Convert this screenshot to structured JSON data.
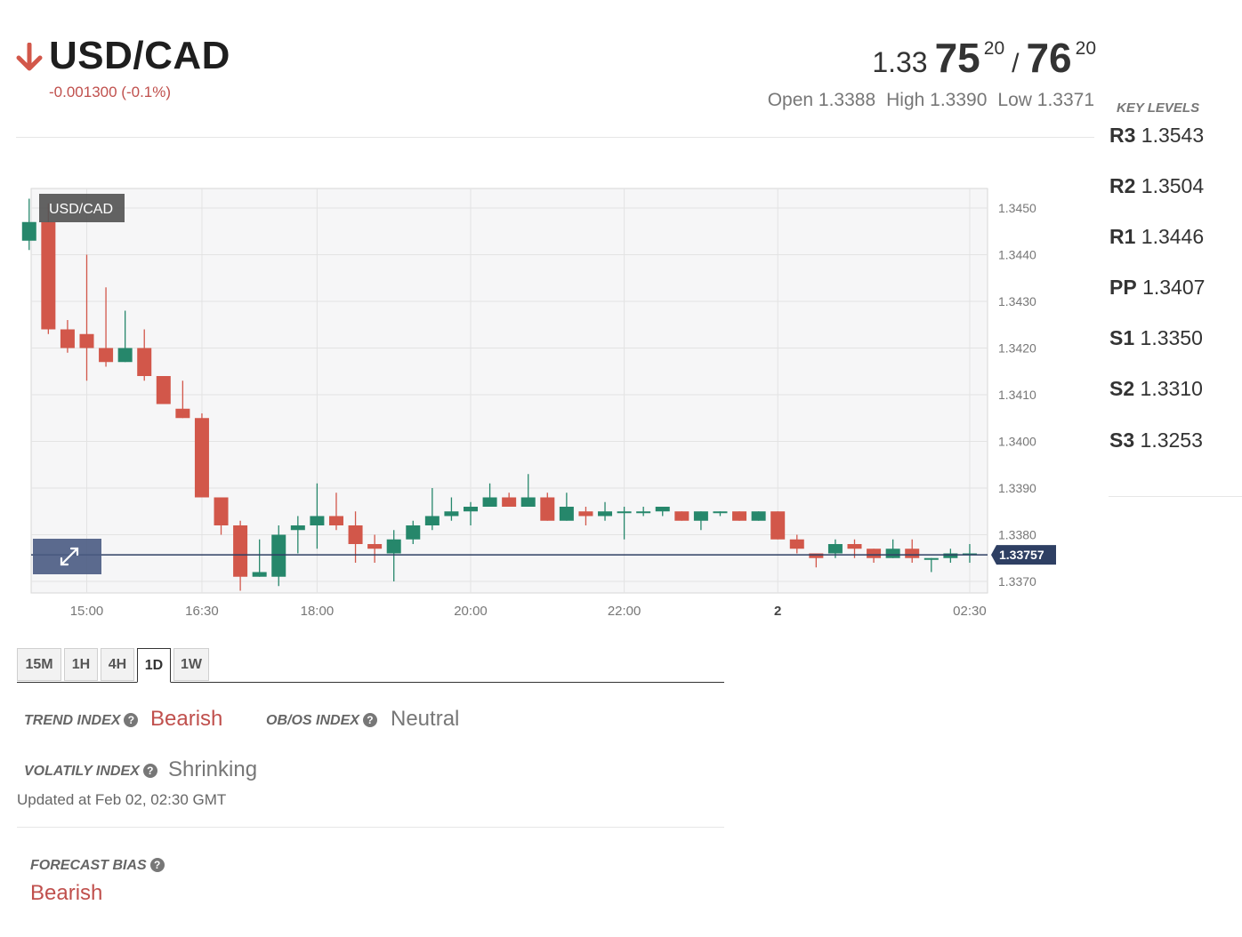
{
  "header": {
    "symbol": "USD/CAD",
    "change_text": "-0.001300 (-0.1%)",
    "direction": "down",
    "down_color": "#c0504d",
    "bid": {
      "prefix": "1.33",
      "big": "75",
      "pip": "20"
    },
    "separator": "/",
    "ask": {
      "big": "76",
      "pip": "20"
    },
    "open": "Open 1.3388",
    "high": "High 1.3390",
    "low": "Low 1.3371"
  },
  "key_levels": {
    "title": "KEY LEVELS",
    "items": [
      {
        "name": "R3",
        "value": "1.3543"
      },
      {
        "name": "R2",
        "value": "1.3504"
      },
      {
        "name": "R1",
        "value": "1.3446"
      },
      {
        "name": "PP",
        "value": "1.3407"
      },
      {
        "name": "S1",
        "value": "1.3350"
      },
      {
        "name": "S2",
        "value": "1.3310"
      },
      {
        "name": "S3",
        "value": "1.3253"
      }
    ]
  },
  "chart_data": {
    "type": "candlestick",
    "title": "USD/CAD",
    "current_price": 1.33757,
    "current_price_label": "1.33757",
    "ylim": [
      1.3367,
      1.3453
    ],
    "y_ticks": [
      "1.3450",
      "1.3440",
      "1.3430",
      "1.3420",
      "1.3410",
      "1.3400",
      "1.3390",
      "1.3380",
      "1.3370"
    ],
    "x_ticks": [
      {
        "time": "15:00",
        "label": "15:00"
      },
      {
        "time": "16:30",
        "label": "16:30"
      },
      {
        "time": "18:00",
        "label": "18:00"
      },
      {
        "time": "20:00",
        "label": "20:00"
      },
      {
        "time": "22:00",
        "label": "22:00"
      },
      {
        "time": "00:00",
        "label": "2",
        "bold": true
      },
      {
        "time": "02:30",
        "label": "02:30"
      }
    ],
    "up_color": "#26876b",
    "down_color": "#d2574a",
    "price_line_color": "#2e3f63",
    "candle_interval_minutes": 15,
    "candles": [
      {
        "time": "14:15",
        "o": 1.3443,
        "h": 1.3452,
        "l": 1.3441,
        "c": 1.3447
      },
      {
        "time": "14:30",
        "o": 1.3447,
        "h": 1.3451,
        "l": 1.3423,
        "c": 1.3424
      },
      {
        "time": "14:45",
        "o": 1.3424,
        "h": 1.3426,
        "l": 1.3419,
        "c": 1.342
      },
      {
        "time": "15:00",
        "o": 1.3423,
        "h": 1.344,
        "l": 1.3413,
        "c": 1.342
      },
      {
        "time": "15:15",
        "o": 1.342,
        "h": 1.3433,
        "l": 1.3416,
        "c": 1.3417
      },
      {
        "time": "15:30",
        "o": 1.3417,
        "h": 1.3428,
        "l": 1.3417,
        "c": 1.342
      },
      {
        "time": "15:45",
        "o": 1.342,
        "h": 1.3424,
        "l": 1.3413,
        "c": 1.3414
      },
      {
        "time": "16:00",
        "o": 1.3414,
        "h": 1.3414,
        "l": 1.3408,
        "c": 1.3408
      },
      {
        "time": "16:15",
        "o": 1.3407,
        "h": 1.3413,
        "l": 1.3405,
        "c": 1.3405
      },
      {
        "time": "16:30",
        "o": 1.3405,
        "h": 1.3406,
        "l": 1.3388,
        "c": 1.3388
      },
      {
        "time": "16:45",
        "o": 1.3388,
        "h": 1.3388,
        "l": 1.338,
        "c": 1.3382
      },
      {
        "time": "17:00",
        "o": 1.3382,
        "h": 1.3383,
        "l": 1.3368,
        "c": 1.3371
      },
      {
        "time": "17:15",
        "o": 1.3371,
        "h": 1.3379,
        "l": 1.3371,
        "c": 1.3372
      },
      {
        "time": "17:30",
        "o": 1.3371,
        "h": 1.3382,
        "l": 1.3369,
        "c": 1.338
      },
      {
        "time": "17:45",
        "o": 1.3381,
        "h": 1.3384,
        "l": 1.3376,
        "c": 1.3382
      },
      {
        "time": "18:00",
        "o": 1.3382,
        "h": 1.3391,
        "l": 1.3377,
        "c": 1.3384
      },
      {
        "time": "18:15",
        "o": 1.3384,
        "h": 1.3389,
        "l": 1.3381,
        "c": 1.3382
      },
      {
        "time": "18:30",
        "o": 1.3382,
        "h": 1.3385,
        "l": 1.3374,
        "c": 1.3378
      },
      {
        "time": "18:45",
        "o": 1.3378,
        "h": 1.338,
        "l": 1.3374,
        "c": 1.3377
      },
      {
        "time": "19:00",
        "o": 1.3376,
        "h": 1.3381,
        "l": 1.337,
        "c": 1.3379
      },
      {
        "time": "19:15",
        "o": 1.3379,
        "h": 1.3383,
        "l": 1.3378,
        "c": 1.3382
      },
      {
        "time": "19:30",
        "o": 1.3382,
        "h": 1.339,
        "l": 1.3381,
        "c": 1.3384
      },
      {
        "time": "19:45",
        "o": 1.3384,
        "h": 1.3388,
        "l": 1.3383,
        "c": 1.3385
      },
      {
        "time": "20:00",
        "o": 1.3385,
        "h": 1.3387,
        "l": 1.3382,
        "c": 1.3386
      },
      {
        "time": "20:15",
        "o": 1.3386,
        "h": 1.3391,
        "l": 1.3386,
        "c": 1.3388
      },
      {
        "time": "20:30",
        "o": 1.3388,
        "h": 1.3389,
        "l": 1.3386,
        "c": 1.3386
      },
      {
        "time": "20:45",
        "o": 1.3386,
        "h": 1.3393,
        "l": 1.3386,
        "c": 1.3388
      },
      {
        "time": "21:00",
        "o": 1.3388,
        "h": 1.3389,
        "l": 1.3383,
        "c": 1.3383
      },
      {
        "time": "21:15",
        "o": 1.3383,
        "h": 1.3389,
        "l": 1.3383,
        "c": 1.3386
      },
      {
        "time": "21:30",
        "o": 1.3385,
        "h": 1.3386,
        "l": 1.3382,
        "c": 1.3384
      },
      {
        "time": "21:45",
        "o": 1.3384,
        "h": 1.3387,
        "l": 1.3383,
        "c": 1.3385
      },
      {
        "time": "22:00",
        "o": 1.3385,
        "h": 1.3386,
        "l": 1.3379,
        "c": 1.3385
      },
      {
        "time": "22:15",
        "o": 1.3385,
        "h": 1.3386,
        "l": 1.3384,
        "c": 1.3385
      },
      {
        "time": "22:30",
        "o": 1.3385,
        "h": 1.3386,
        "l": 1.3384,
        "c": 1.3386
      },
      {
        "time": "22:45",
        "o": 1.3385,
        "h": 1.3385,
        "l": 1.3383,
        "c": 1.3383
      },
      {
        "time": "23:00",
        "o": 1.3383,
        "h": 1.3385,
        "l": 1.3381,
        "c": 1.3385
      },
      {
        "time": "23:15",
        "o": 1.3385,
        "h": 1.3385,
        "l": 1.3384,
        "c": 1.3385
      },
      {
        "time": "23:30",
        "o": 1.3385,
        "h": 1.3385,
        "l": 1.3383,
        "c": 1.3383
      },
      {
        "time": "23:45",
        "o": 1.3383,
        "h": 1.3385,
        "l": 1.3383,
        "c": 1.3385
      },
      {
        "time": "00:00",
        "o": 1.3385,
        "h": 1.3385,
        "l": 1.3379,
        "c": 1.3379
      },
      {
        "time": "00:15",
        "o": 1.3379,
        "h": 1.338,
        "l": 1.3376,
        "c": 1.3377
      },
      {
        "time": "00:30",
        "o": 1.3376,
        "h": 1.3376,
        "l": 1.3373,
        "c": 1.3375
      },
      {
        "time": "00:45",
        "o": 1.3376,
        "h": 1.3379,
        "l": 1.3375,
        "c": 1.3378
      },
      {
        "time": "01:00",
        "o": 1.3378,
        "h": 1.3379,
        "l": 1.3375,
        "c": 1.3377
      },
      {
        "time": "01:15",
        "o": 1.3377,
        "h": 1.3377,
        "l": 1.3374,
        "c": 1.3375
      },
      {
        "time": "01:30",
        "o": 1.3375,
        "h": 1.3379,
        "l": 1.3375,
        "c": 1.3377
      },
      {
        "time": "01:45",
        "o": 1.3377,
        "h": 1.3379,
        "l": 1.3374,
        "c": 1.3375
      },
      {
        "time": "02:00",
        "o": 1.3375,
        "h": 1.3375,
        "l": 1.3372,
        "c": 1.3375
      },
      {
        "time": "02:15",
        "o": 1.3375,
        "h": 1.3377,
        "l": 1.3374,
        "c": 1.3376
      },
      {
        "time": "02:30",
        "o": 1.3376,
        "h": 1.3378,
        "l": 1.3374,
        "c": 1.3376
      }
    ]
  },
  "tabs": [
    {
      "label": "15M",
      "active": false
    },
    {
      "label": "1H",
      "active": false
    },
    {
      "label": "4H",
      "active": false
    },
    {
      "label": "1D",
      "active": true
    },
    {
      "label": "1W",
      "active": false
    }
  ],
  "indices": {
    "trend": {
      "label": "TREND INDEX",
      "value": "Bearish"
    },
    "obos": {
      "label": "OB/OS INDEX",
      "value": "Neutral"
    },
    "volatility": {
      "label": "VOLATILY INDEX",
      "value": "Shrinking"
    },
    "updated": "Updated at Feb 02, 02:30 GMT",
    "forecast": {
      "label": "FORECAST BIAS",
      "value": "Bearish"
    }
  },
  "icons": {
    "direction": "arrow-down-icon",
    "help": "question-circle-icon",
    "expand": "expand-icon"
  }
}
